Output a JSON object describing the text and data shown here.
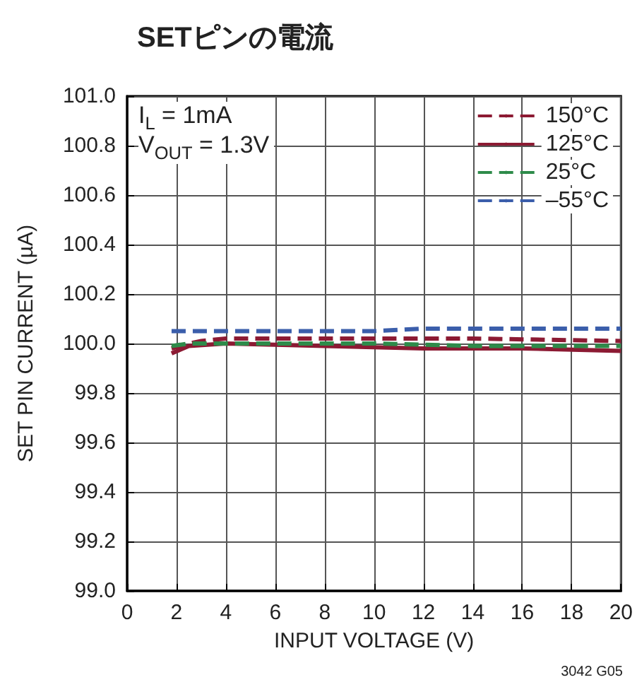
{
  "chart_data": {
    "type": "line",
    "title": "SETピンの電流",
    "xlabel": "INPUT VOLTAGE (V)",
    "ylabel": "SET PIN CURRENT (µA)",
    "annotations": [
      "I$_{L}$ = 1mA",
      "V$_{OUT}$ = 1.3V",
      "3042 G05"
    ],
    "series": [
      {
        "name": "150°C",
        "color": "#8c1a33",
        "line_style": "dashed",
        "x": [
          1.8,
          2.5,
          3,
          4,
          6,
          10,
          14,
          20
        ],
        "values": [
          99.98,
          100.0,
          100.01,
          100.02,
          100.02,
          100.02,
          100.02,
          100.01
        ]
      },
      {
        "name": "125°C",
        "color": "#8c1a33",
        "line_style": "solid",
        "x": [
          1.8,
          2.5,
          4,
          8,
          12,
          16,
          20
        ],
        "values": [
          99.96,
          99.99,
          100.0,
          99.99,
          99.98,
          99.98,
          99.97
        ]
      },
      {
        "name": "25°C",
        "color": "#2e8b4a",
        "line_style": "dashed",
        "x": [
          1.8,
          2.5,
          6,
          10,
          14,
          20
        ],
        "values": [
          99.99,
          100.0,
          100.0,
          100.0,
          99.99,
          99.99
        ]
      },
      {
        "name": "–55°C",
        "color": "#3b5eab",
        "line_style": "dashed",
        "x": [
          1.8,
          4,
          10,
          12,
          20
        ],
        "values": [
          100.05,
          100.05,
          100.05,
          100.06,
          100.06
        ]
      }
    ],
    "xlim": [
      0,
      20
    ],
    "xticks": [
      0,
      2,
      4,
      6,
      8,
      10,
      12,
      14,
      16,
      18,
      20
    ],
    "ylim": [
      99.0,
      101.0
    ],
    "yticks": [
      {
        "value": 99.0,
        "label": "99.0"
      },
      99.2,
      99.4,
      99.6,
      99.8,
      {
        "value": 100.0,
        "label": "100.0"
      },
      100.2,
      100.4,
      100.6,
      100.8,
      {
        "value": 101.0,
        "label": "101.0"
      }
    ],
    "grid": true,
    "legend": "top right",
    "marker": "none"
  }
}
